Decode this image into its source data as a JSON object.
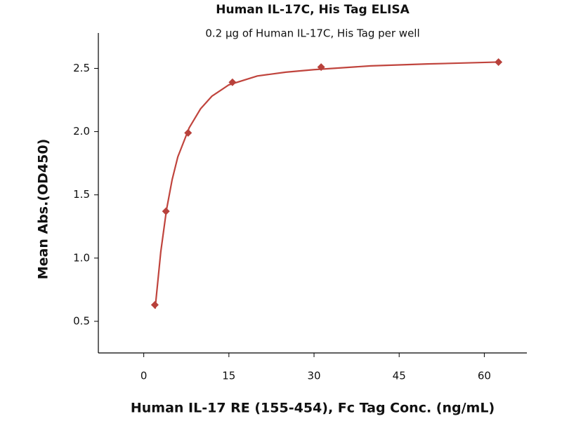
{
  "chart_data": {
    "type": "scatter",
    "title": "Human IL-17C, His Tag ELISA",
    "subtitle": "0.2 μg of Human IL-17C, His Tag per well",
    "x_label": "Human IL-17 RE (155-454), Fc Tag Conc. (ng/mL)",
    "y_label": "Mean Abs.(OD450)",
    "xlim": [
      -8,
      67.5
    ],
    "ylim": [
      0.25,
      2.78
    ],
    "xticks": [
      0,
      15,
      30,
      45,
      60
    ],
    "yticks": [
      0.5,
      {
        "value": 1,
        "label": "1.0"
      },
      1.5,
      {
        "value": 2,
        "label": "2.0"
      },
      2.5
    ],
    "series": [
      {
        "type": "scatter",
        "color": "#b8413b",
        "x": [
          1.953,
          3.906,
          7.8125,
          15.625,
          31.25,
          62.5
        ],
        "values": [
          0.63,
          1.37,
          1.99,
          2.39,
          2.51,
          2.55
        ]
      },
      {
        "type": "line",
        "color": "#c0443d",
        "x": [
          2,
          3,
          4,
          5,
          6,
          8,
          10,
          12,
          15,
          20,
          25,
          30,
          40,
          50,
          62.5
        ],
        "values": [
          0.6,
          1.05,
          1.38,
          1.62,
          1.8,
          2.03,
          2.18,
          2.28,
          2.37,
          2.44,
          2.47,
          2.49,
          2.52,
          2.535,
          2.55
        ]
      }
    ]
  }
}
